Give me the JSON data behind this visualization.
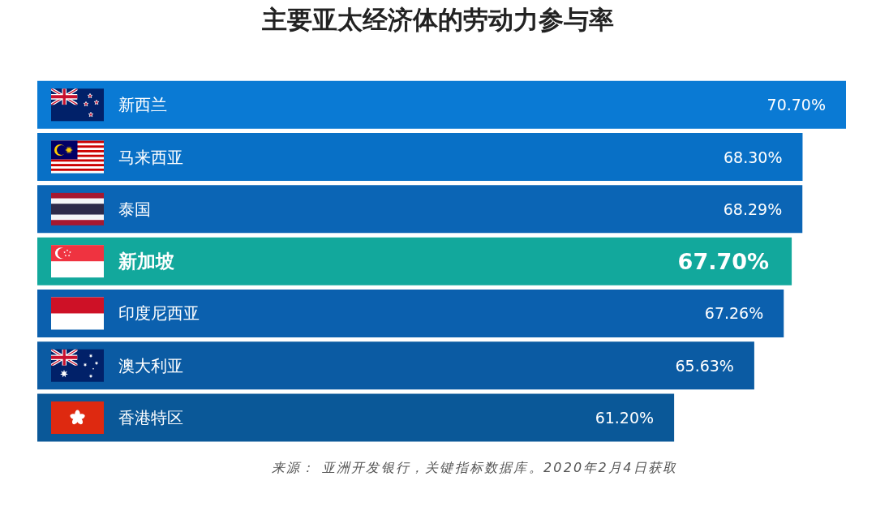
{
  "chart_data": {
    "type": "bar",
    "orientation": "horizontal",
    "title": "主要亚太经济体的劳动力参与率",
    "categories": [
      "新西兰",
      "马来西亚",
      "泰国",
      "新加坡",
      "印度尼西亚",
      "澳大利亚",
      "香港特区"
    ],
    "values": [
      70.7,
      68.3,
      68.29,
      67.7,
      67.26,
      65.63,
      61.2
    ],
    "value_labels": [
      "70.70%",
      "68.30%",
      "68.29%",
      "67.70%",
      "67.26%",
      "65.63%",
      "61.20%"
    ],
    "colors": [
      "#0a7ad4",
      "#0870c6",
      "#0b65b5",
      "#12a89c",
      "#0b60ae",
      "#0b5ba3",
      "#0a5898"
    ],
    "xlim": [
      26,
      70.7
    ],
    "tick_labels": "y",
    "annotations": [
      "来源： 亚洲开发银行，关键指标数据库。2020年2月4日获取"
    ]
  }
}
